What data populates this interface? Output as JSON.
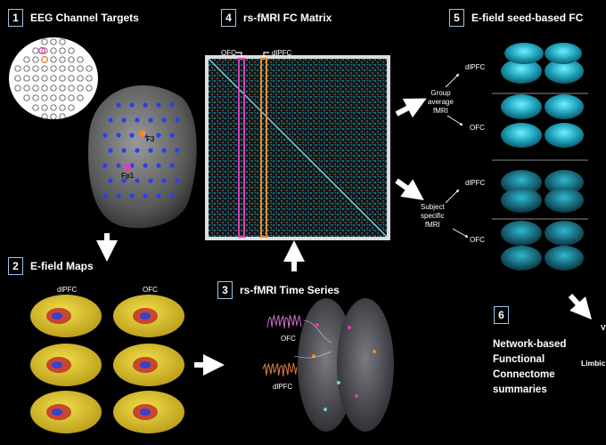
{
  "panels": {
    "p1": {
      "number": "1",
      "title": "EEG Channel Targets"
    },
    "p2": {
      "number": "2",
      "title": "E-field Maps"
    },
    "p3": {
      "number": "3",
      "title": "rs-fMRI Time Series"
    },
    "p4": {
      "number": "4",
      "title": "rs-fMRI FC Matrix"
    },
    "p5": {
      "number": "5",
      "title": "E-field seed-based FC"
    },
    "p6": {
      "number": "6"
    }
  },
  "head_labels": {
    "f3": "F3",
    "fp1": "Fp1"
  },
  "efield_columns": {
    "left": "dlPFC",
    "right": "OFC"
  },
  "timeseries_labels": {
    "ofc": "OFC",
    "dlpfc": "dlPFC"
  },
  "matrix_markers": {
    "ofc": "OFC",
    "dlpfc": "dlPFC"
  },
  "fc_branches": {
    "group": {
      "line1": "Group",
      "line2": "average",
      "line3": "fMRI",
      "top": "dlPFC",
      "bottom": "OFC"
    },
    "subject": {
      "line1": "Subject",
      "line2": "specific",
      "line3": "fMRI",
      "top": "dlPFC",
      "bottom": "OFC"
    }
  },
  "summary": {
    "line1": "Network-based",
    "line2": "Functional",
    "line3": "Connectome",
    "line4": "summaries"
  },
  "cut_labels": {
    "limbic": "Limbic",
    "v": "V"
  },
  "colors": {
    "frame": "#9fc3e6",
    "ofc_marker": "#e040b0",
    "dlpfc_marker": "#f08a2a",
    "brain_yellow": "#e8d23a",
    "fc_cyan": "#3fd0e0",
    "head_dot": "#2a3ff0"
  }
}
